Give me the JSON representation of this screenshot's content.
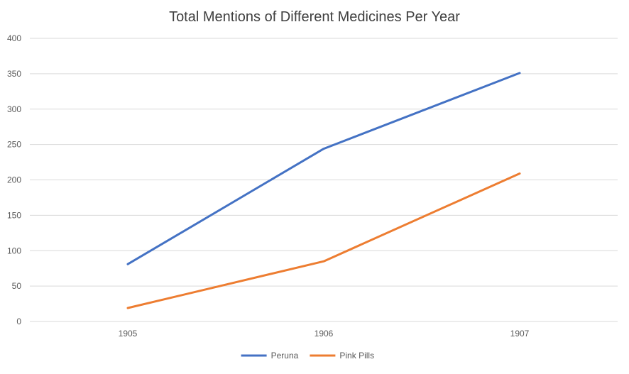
{
  "chart_data": {
    "type": "line",
    "title": "Total Mentions of Different Medicines Per Year",
    "xlabel": "",
    "ylabel": "",
    "categories": [
      "1905",
      "1906",
      "1907"
    ],
    "ylim": [
      0,
      400
    ],
    "yticks": [
      0,
      50,
      100,
      150,
      200,
      250,
      300,
      350,
      400
    ],
    "grid": true,
    "legend_position": "bottom",
    "series": [
      {
        "name": "Peruna",
        "color": "#4472C4",
        "values": [
          81,
          244,
          351
        ]
      },
      {
        "name": "Pink Pills",
        "color": "#ED7D31",
        "values": [
          19,
          85,
          209
        ]
      }
    ]
  }
}
